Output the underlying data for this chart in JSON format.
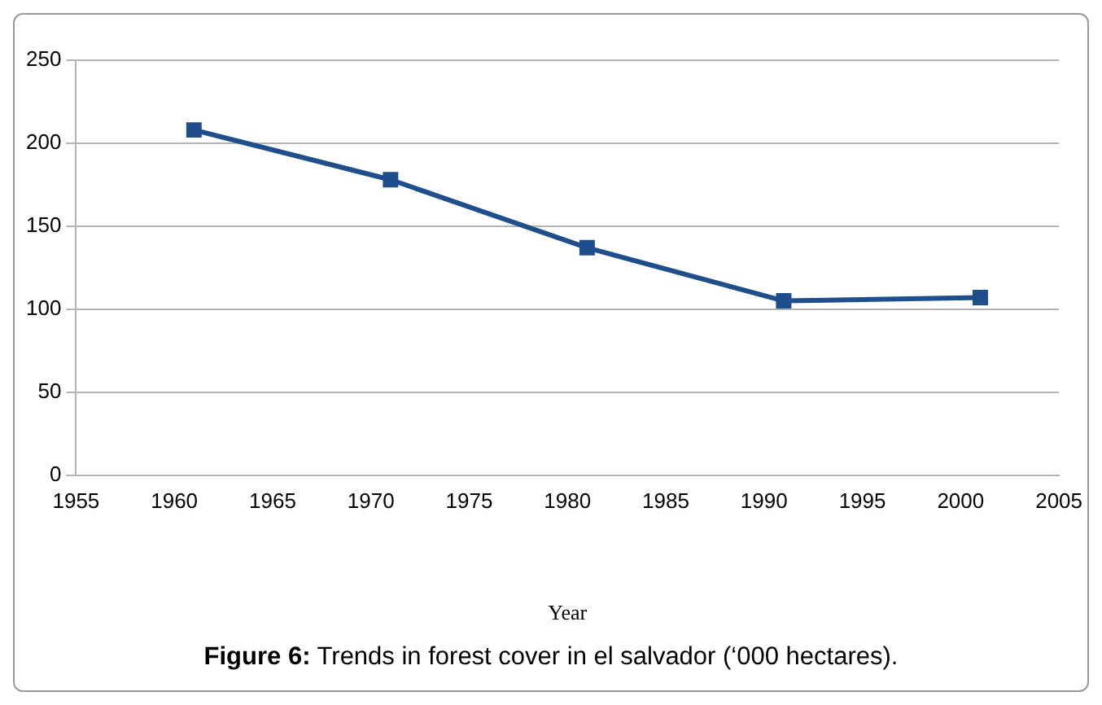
{
  "chart_data": {
    "type": "line",
    "xlabel": "Year",
    "annotations": [
      "Figure 6: Trends in forest cover in el salvador (‘000 hectares)."
    ],
    "x": [
      1961,
      1971,
      1981,
      1991,
      2001
    ],
    "series": [
      {
        "color": "#1f4e8c",
        "values": [
          208,
          178,
          137,
          105,
          107
        ]
      }
    ],
    "xlim": [
      1955,
      2005
    ],
    "xticks": [
      1955,
      1960,
      1965,
      1970,
      1975,
      1980,
      1985,
      1990,
      1995,
      2000,
      2005
    ],
    "ylim": [
      0,
      250
    ],
    "yticks": [
      0,
      50,
      100,
      150,
      200,
      250
    ],
    "grid": "y",
    "legend": false,
    "marker": "square",
    "line_style": "solid"
  }
}
